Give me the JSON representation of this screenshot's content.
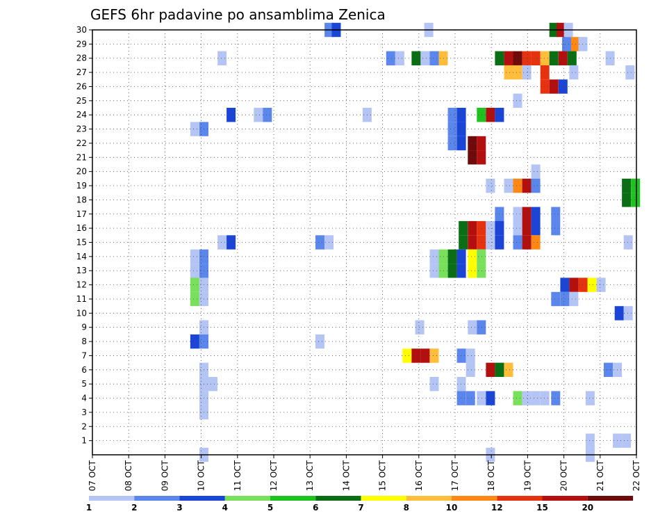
{
  "chart_data": {
    "type": "heatmap",
    "title": "GEFS 6hr padavine po ansamblima Zenica",
    "xlabel": "",
    "ylabel": "",
    "x_tick_labels": [
      "07 OCT",
      "08 OCT",
      "09 OCT",
      "10 OCT",
      "11 OCT",
      "12 OCT",
      "13 OCT",
      "14 OCT",
      "15 OCT",
      "16 OCT",
      "17 OCT",
      "18 OCT",
      "19 OCT",
      "20 OCT",
      "21 OCT",
      "22 OCT"
    ],
    "x_range_days": [
      0,
      15
    ],
    "y_tick_labels": [
      "1",
      "2",
      "3",
      "4",
      "5",
      "6",
      "7",
      "8",
      "9",
      "10",
      "11",
      "12",
      "13",
      "14",
      "15",
      "16",
      "17",
      "18",
      "19",
      "20",
      "21",
      "22",
      "23",
      "24",
      "25",
      "26",
      "27",
      "28",
      "29",
      "30"
    ],
    "y_range": [
      0,
      30
    ],
    "grid": true,
    "legend_position": "bottom",
    "legend": {
      "labels": [
        "1",
        "2",
        "3",
        "4",
        "5",
        "6",
        "7",
        "8",
        "10",
        "12",
        "15",
        "20"
      ],
      "colors": [
        "#b4c5f5",
        "#5b86eb",
        "#1a45d6",
        "#78e05a",
        "#1ec31e",
        "#0a6e14",
        "#ffff00",
        "#ffbd3c",
        "#ff8714",
        "#e6320f",
        "#b40f0f",
        "#6e0a0a"
      ]
    },
    "cells": [
      {
        "m": 30,
        "d": 12.6,
        "c": 6
      },
      {
        "m": 30,
        "d": 12.8,
        "c": 11
      },
      {
        "m": 30,
        "d": 13.0,
        "c": 1
      },
      {
        "m": 30,
        "d": 9.15,
        "c": 1
      },
      {
        "m": 30,
        "d": 6.4,
        "c": 2
      },
      {
        "m": 30,
        "d": 6.6,
        "c": 3
      },
      {
        "m": 29,
        "d": 12.95,
        "c": 2
      },
      {
        "m": 29,
        "d": 13.2,
        "c": 9
      },
      {
        "m": 29,
        "d": 13.4,
        "c": 1
      },
      {
        "m": 28,
        "d": 3.45,
        "c": 1
      },
      {
        "m": 28,
        "d": 8.1,
        "c": 2
      },
      {
        "m": 28,
        "d": 8.35,
        "c": 1
      },
      {
        "m": 28,
        "d": 8.8,
        "c": 6
      },
      {
        "m": 28,
        "d": 9.05,
        "c": 1
      },
      {
        "m": 28,
        "d": 9.3,
        "c": 2
      },
      {
        "m": 28,
        "d": 9.55,
        "c": 8
      },
      {
        "m": 28,
        "d": 11.1,
        "c": 6
      },
      {
        "m": 28,
        "d": 11.35,
        "c": 11
      },
      {
        "m": 28,
        "d": 11.6,
        "c": 12
      },
      {
        "m": 28,
        "d": 11.85,
        "c": 10
      },
      {
        "m": 28,
        "d": 12.1,
        "c": 10
      },
      {
        "m": 28,
        "d": 12.35,
        "c": 8
      },
      {
        "m": 28,
        "d": 12.6,
        "c": 6
      },
      {
        "m": 28,
        "d": 12.85,
        "c": 11
      },
      {
        "m": 28,
        "d": 13.1,
        "c": 6
      },
      {
        "m": 28,
        "d": 14.15,
        "c": 1
      },
      {
        "m": 27,
        "d": 11.35,
        "c": 8
      },
      {
        "m": 27,
        "d": 11.6,
        "c": 8
      },
      {
        "m": 27,
        "d": 11.85,
        "c": 1
      },
      {
        "m": 27,
        "d": 12.35,
        "c": 10
      },
      {
        "m": 27,
        "d": 13.15,
        "c": 1
      },
      {
        "m": 27,
        "d": 14.7,
        "c": 1
      },
      {
        "m": 26,
        "d": 12.35,
        "c": 10
      },
      {
        "m": 26,
        "d": 12.6,
        "c": 11
      },
      {
        "m": 26,
        "d": 12.85,
        "c": 3
      },
      {
        "m": 25,
        "d": 11.6,
        "c": 1
      },
      {
        "m": 24,
        "d": 3.7,
        "c": 3
      },
      {
        "m": 24,
        "d": 4.45,
        "c": 1
      },
      {
        "m": 24,
        "d": 4.7,
        "c": 2
      },
      {
        "m": 24,
        "d": 7.45,
        "c": 1
      },
      {
        "m": 24,
        "d": 9.8,
        "c": 2
      },
      {
        "m": 24,
        "d": 10.05,
        "c": 3
      },
      {
        "m": 24,
        "d": 10.6,
        "c": 5
      },
      {
        "m": 24,
        "d": 10.85,
        "c": 11
      },
      {
        "m": 24,
        "d": 11.1,
        "c": 3
      },
      {
        "m": 23,
        "d": 2.7,
        "c": 1
      },
      {
        "m": 23,
        "d": 2.95,
        "c": 2
      },
      {
        "m": 23,
        "d": 9.8,
        "c": 2
      },
      {
        "m": 23,
        "d": 10.05,
        "c": 3
      },
      {
        "m": 22,
        "d": 9.8,
        "c": 2
      },
      {
        "m": 22,
        "d": 10.05,
        "c": 3
      },
      {
        "m": 22,
        "d": 10.35,
        "c": 12
      },
      {
        "m": 22,
        "d": 10.6,
        "c": 11
      },
      {
        "m": 21,
        "d": 10.35,
        "c": 12
      },
      {
        "m": 21,
        "d": 10.6,
        "c": 11
      },
      {
        "m": 20,
        "d": 12.1,
        "c": 1
      },
      {
        "m": 19,
        "d": 10.85,
        "c": 1
      },
      {
        "m": 19,
        "d": 11.35,
        "c": 1
      },
      {
        "m": 19,
        "d": 11.6,
        "c": 9
      },
      {
        "m": 19,
        "d": 11.85,
        "c": 11
      },
      {
        "m": 19,
        "d": 12.1,
        "c": 2
      },
      {
        "m": 19,
        "d": 14.6,
        "c": 6
      },
      {
        "m": 19,
        "d": 14.85,
        "c": 5
      },
      {
        "m": 18,
        "d": 14.6,
        "c": 6
      },
      {
        "m": 18,
        "d": 14.85,
        "c": 5
      },
      {
        "m": 17,
        "d": 11.1,
        "c": 2
      },
      {
        "m": 17,
        "d": 11.6,
        "c": 1
      },
      {
        "m": 17,
        "d": 11.85,
        "c": 11
      },
      {
        "m": 17,
        "d": 12.1,
        "c": 3
      },
      {
        "m": 17,
        "d": 12.65,
        "c": 2
      },
      {
        "m": 16,
        "d": 10.1,
        "c": 6
      },
      {
        "m": 16,
        "d": 10.35,
        "c": 11
      },
      {
        "m": 16,
        "d": 10.6,
        "c": 10
      },
      {
        "m": 16,
        "d": 10.85,
        "c": 1
      },
      {
        "m": 16,
        "d": 11.1,
        "c": 3
      },
      {
        "m": 16,
        "d": 11.6,
        "c": 1
      },
      {
        "m": 16,
        "d": 11.85,
        "c": 11
      },
      {
        "m": 16,
        "d": 12.1,
        "c": 3
      },
      {
        "m": 16,
        "d": 12.65,
        "c": 2
      },
      {
        "m": 15,
        "d": 3.45,
        "c": 1
      },
      {
        "m": 15,
        "d": 3.7,
        "c": 3
      },
      {
        "m": 15,
        "d": 6.15,
        "c": 2
      },
      {
        "m": 15,
        "d": 6.4,
        "c": 1
      },
      {
        "m": 15,
        "d": 10.1,
        "c": 6
      },
      {
        "m": 15,
        "d": 10.35,
        "c": 11
      },
      {
        "m": 15,
        "d": 10.6,
        "c": 10
      },
      {
        "m": 15,
        "d": 10.85,
        "c": 1
      },
      {
        "m": 15,
        "d": 11.1,
        "c": 3
      },
      {
        "m": 15,
        "d": 11.6,
        "c": 2
      },
      {
        "m": 15,
        "d": 11.85,
        "c": 11
      },
      {
        "m": 15,
        "d": 12.1,
        "c": 9
      },
      {
        "m": 15,
        "d": 14.65,
        "c": 1
      },
      {
        "m": 14,
        "d": 2.7,
        "c": 1
      },
      {
        "m": 14,
        "d": 2.95,
        "c": 2
      },
      {
        "m": 14,
        "d": 9.3,
        "c": 1
      },
      {
        "m": 14,
        "d": 9.55,
        "c": 4
      },
      {
        "m": 14,
        "d": 9.8,
        "c": 6
      },
      {
        "m": 14,
        "d": 10.05,
        "c": 3
      },
      {
        "m": 14,
        "d": 10.35,
        "c": 7
      },
      {
        "m": 14,
        "d": 10.6,
        "c": 4
      },
      {
        "m": 13,
        "d": 2.7,
        "c": 1
      },
      {
        "m": 13,
        "d": 2.95,
        "c": 2
      },
      {
        "m": 13,
        "d": 9.3,
        "c": 1
      },
      {
        "m": 13,
        "d": 9.55,
        "c": 4
      },
      {
        "m": 13,
        "d": 9.8,
        "c": 6
      },
      {
        "m": 13,
        "d": 10.05,
        "c": 3
      },
      {
        "m": 13,
        "d": 10.35,
        "c": 7
      },
      {
        "m": 13,
        "d": 10.6,
        "c": 4
      },
      {
        "m": 12,
        "d": 2.7,
        "c": 4
      },
      {
        "m": 12,
        "d": 2.95,
        "c": 1
      },
      {
        "m": 12,
        "d": 12.9,
        "c": 3
      },
      {
        "m": 12,
        "d": 13.15,
        "c": 11
      },
      {
        "m": 12,
        "d": 13.4,
        "c": 10
      },
      {
        "m": 12,
        "d": 13.65,
        "c": 7
      },
      {
        "m": 12,
        "d": 13.9,
        "c": 1
      },
      {
        "m": 11,
        "d": 2.7,
        "c": 4
      },
      {
        "m": 11,
        "d": 2.95,
        "c": 1
      },
      {
        "m": 11,
        "d": 12.65,
        "c": 2
      },
      {
        "m": 11,
        "d": 12.9,
        "c": 2
      },
      {
        "m": 11,
        "d": 13.15,
        "c": 1
      },
      {
        "m": 10,
        "d": 14.4,
        "c": 3
      },
      {
        "m": 10,
        "d": 14.65,
        "c": 1
      },
      {
        "m": 9,
        "d": 2.95,
        "c": 1
      },
      {
        "m": 9,
        "d": 8.9,
        "c": 1
      },
      {
        "m": 9,
        "d": 10.35,
        "c": 1
      },
      {
        "m": 9,
        "d": 10.6,
        "c": 2
      },
      {
        "m": 8,
        "d": 2.7,
        "c": 3
      },
      {
        "m": 8,
        "d": 2.95,
        "c": 2
      },
      {
        "m": 8,
        "d": 6.15,
        "c": 1
      },
      {
        "m": 7,
        "d": 8.55,
        "c": 7
      },
      {
        "m": 7,
        "d": 8.8,
        "c": 11
      },
      {
        "m": 7,
        "d": 9.05,
        "c": 11
      },
      {
        "m": 7,
        "d": 9.3,
        "c": 8
      },
      {
        "m": 7,
        "d": 10.05,
        "c": 2
      },
      {
        "m": 7,
        "d": 10.3,
        "c": 1
      },
      {
        "m": 6,
        "d": 2.95,
        "c": 1
      },
      {
        "m": 6,
        "d": 10.3,
        "c": 1
      },
      {
        "m": 6,
        "d": 10.85,
        "c": 11
      },
      {
        "m": 6,
        "d": 11.1,
        "c": 6
      },
      {
        "m": 6,
        "d": 11.35,
        "c": 8
      },
      {
        "m": 6,
        "d": 14.1,
        "c": 2
      },
      {
        "m": 6,
        "d": 14.35,
        "c": 1
      },
      {
        "m": 5,
        "d": 2.95,
        "c": 1
      },
      {
        "m": 5,
        "d": 3.2,
        "c": 1
      },
      {
        "m": 5,
        "d": 9.3,
        "c": 1
      },
      {
        "m": 5,
        "d": 10.05,
        "c": 1
      },
      {
        "m": 4,
        "d": 2.95,
        "c": 1
      },
      {
        "m": 4,
        "d": 10.05,
        "c": 2
      },
      {
        "m": 4,
        "d": 10.3,
        "c": 2
      },
      {
        "m": 4,
        "d": 10.6,
        "c": 1
      },
      {
        "m": 4,
        "d": 10.85,
        "c": 3
      },
      {
        "m": 4,
        "d": 11.6,
        "c": 4
      },
      {
        "m": 4,
        "d": 11.85,
        "c": 1
      },
      {
        "m": 4,
        "d": 12.1,
        "c": 1
      },
      {
        "m": 4,
        "d": 12.35,
        "c": 1
      },
      {
        "m": 4,
        "d": 12.65,
        "c": 2
      },
      {
        "m": 4,
        "d": 13.6,
        "c": 1
      },
      {
        "m": 3,
        "d": 2.95,
        "c": 1
      },
      {
        "m": 1,
        "d": 13.6,
        "c": 1
      },
      {
        "m": 1,
        "d": 14.35,
        "c": 1
      },
      {
        "m": 1,
        "d": 14.6,
        "c": 1
      },
      {
        "m": 0,
        "d": 2.95,
        "c": 1
      },
      {
        "m": 0,
        "d": 10.85,
        "c": 1
      },
      {
        "m": 0,
        "d": 13.6,
        "c": 1
      }
    ]
  }
}
